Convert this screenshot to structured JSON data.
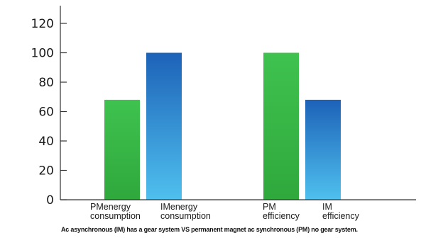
{
  "chart_data": {
    "type": "bar",
    "categories": [
      [
        "PMenergy",
        "consumption"
      ],
      [
        "IMenergy",
        "consumption"
      ],
      [
        "PM",
        "efficiency"
      ],
      [
        "IM",
        "efficiency"
      ]
    ],
    "values": [
      68,
      100,
      100,
      68
    ],
    "bar_style": [
      "green",
      "blue",
      "green",
      "blue"
    ],
    "colors": {
      "green_top": "#3fc24f",
      "green_bottom": "#2fa83c",
      "blue_top": "#1d62b8",
      "blue_bottom": "#4fc0ee"
    },
    "yticks": [
      0,
      20,
      40,
      60,
      80,
      100,
      120
    ],
    "ylim": [
      0,
      120
    ],
    "title": "",
    "xlabel": "",
    "ylabel": "",
    "grid": false,
    "caption": "Ac asynchronous (IM) has a gear system VS permanent magnet ac synchronous (PM) no gear system."
  }
}
